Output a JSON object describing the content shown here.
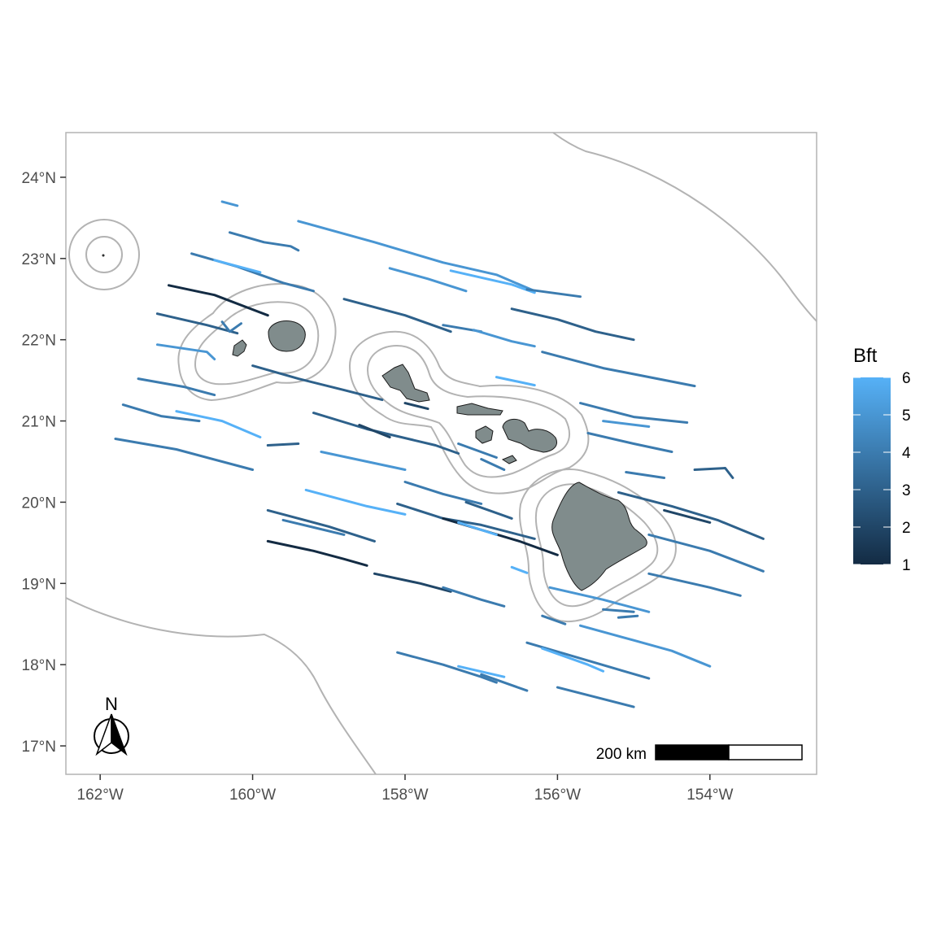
{
  "map": {
    "x_ticks": [
      "162°W",
      "160°W",
      "158°W",
      "156°W",
      "154°W"
    ],
    "y_ticks": [
      "17°N",
      "18°N",
      "19°N",
      "20°N",
      "21°N",
      "22°N",
      "23°N",
      "24°N"
    ],
    "x_tick_values": [
      -162,
      -160,
      -158,
      -156,
      -154
    ],
    "y_tick_values": [
      17,
      18,
      19,
      20,
      21,
      22,
      23,
      24
    ],
    "lon_range": [
      -162.45,
      -152.6
    ],
    "lat_range": [
      16.65,
      24.55
    ],
    "scale_bar": {
      "label": "200 km"
    },
    "north_arrow": {
      "label": "N"
    },
    "colors": {
      "land_fill": "#808c8c",
      "buffer_stroke": "#b3b3b3",
      "panel_border": "#b3b3b3",
      "low": "#132b43",
      "high": "#56b1f7"
    }
  },
  "legend": {
    "title": "Bft",
    "labels": [
      "1",
      "2",
      "3",
      "4",
      "5",
      "6"
    ],
    "values": [
      1,
      2,
      3,
      4,
      5,
      6
    ],
    "range": [
      1,
      6
    ]
  },
  "tracks": [
    {
      "bft": 5,
      "points": [
        [
          -160.4,
          23.7
        ],
        [
          -160.2,
          23.65
        ]
      ]
    },
    {
      "bft": 4,
      "points": [
        [
          -160.3,
          23.32
        ],
        [
          -159.85,
          23.2
        ],
        [
          -159.5,
          23.15
        ],
        [
          -159.4,
          23.1
        ]
      ]
    },
    {
      "bft": 5,
      "points": [
        [
          -159.4,
          23.46
        ],
        [
          -158.4,
          23.2
        ],
        [
          -157.5,
          22.95
        ],
        [
          -156.8,
          22.8
        ],
        [
          -156.3,
          22.6
        ]
      ]
    },
    {
      "bft": 6,
      "points": [
        [
          -157.4,
          22.85
        ],
        [
          -156.6,
          22.68
        ],
        [
          -156.3,
          22.58
        ]
      ]
    },
    {
      "bft": 4,
      "points": [
        [
          -160.8,
          23.06
        ],
        [
          -160.2,
          22.9
        ],
        [
          -159.6,
          22.7
        ],
        [
          -159.2,
          22.6
        ]
      ]
    },
    {
      "bft": 6,
      "points": [
        [
          -160.5,
          22.98
        ],
        [
          -159.9,
          22.83
        ]
      ]
    },
    {
      "bft": 5,
      "points": [
        [
          -158.2,
          22.88
        ],
        [
          -157.7,
          22.75
        ],
        [
          -157.2,
          22.6
        ]
      ]
    },
    {
      "bft": 4,
      "points": [
        [
          -156.4,
          22.62
        ],
        [
          -155.7,
          22.53
        ]
      ]
    },
    {
      "bft": 1,
      "points": [
        [
          -161.1,
          22.67
        ],
        [
          -160.5,
          22.55
        ],
        [
          -159.8,
          22.3
        ]
      ]
    },
    {
      "bft": 3,
      "points": [
        [
          -158.8,
          22.5
        ],
        [
          -158.0,
          22.3
        ],
        [
          -157.4,
          22.1
        ]
      ]
    },
    {
      "bft": 4,
      "points": [
        [
          -157.5,
          22.18
        ],
        [
          -157.0,
          22.1
        ]
      ]
    },
    {
      "bft": 3,
      "points": [
        [
          -156.6,
          22.38
        ],
        [
          -156.0,
          22.25
        ],
        [
          -155.5,
          22.1
        ],
        [
          -155.0,
          22.0
        ]
      ]
    },
    {
      "bft": 3,
      "points": [
        [
          -161.25,
          22.32
        ],
        [
          -160.6,
          22.18
        ],
        [
          -160.2,
          22.08
        ]
      ]
    },
    {
      "bft": 4,
      "points": [
        [
          -160.4,
          22.22
        ],
        [
          -160.3,
          22.1
        ],
        [
          -160.15,
          22.2
        ]
      ]
    },
    {
      "bft": 5,
      "points": [
        [
          -157.1,
          22.12
        ],
        [
          -156.6,
          21.98
        ],
        [
          -156.3,
          21.92
        ]
      ]
    },
    {
      "bft": 4,
      "points": [
        [
          -156.2,
          21.85
        ],
        [
          -155.4,
          21.65
        ],
        [
          -154.2,
          21.43
        ]
      ]
    },
    {
      "bft": 5,
      "points": [
        [
          -161.25,
          21.94
        ],
        [
          -160.6,
          21.85
        ],
        [
          -160.5,
          21.76
        ]
      ]
    },
    {
      "bft": 3,
      "points": [
        [
          -160.0,
          21.68
        ],
        [
          -159.4,
          21.52
        ],
        [
          -158.8,
          21.38
        ],
        [
          -158.3,
          21.26
        ]
      ]
    },
    {
      "bft": 2,
      "points": [
        [
          -158.0,
          21.22
        ],
        [
          -157.7,
          21.15
        ]
      ]
    },
    {
      "bft": 6,
      "points": [
        [
          -156.8,
          21.54
        ],
        [
          -156.3,
          21.44
        ]
      ]
    },
    {
      "bft": 4,
      "points": [
        [
          -161.5,
          21.52
        ],
        [
          -160.9,
          21.42
        ],
        [
          -160.5,
          21.32
        ]
      ]
    },
    {
      "bft": 6,
      "points": [
        [
          -161.0,
          21.12
        ],
        [
          -160.4,
          21.0
        ],
        [
          -159.9,
          20.8
        ]
      ]
    },
    {
      "bft": 4,
      "points": [
        [
          -161.7,
          21.2
        ],
        [
          -161.2,
          21.06
        ],
        [
          -160.7,
          21.0
        ]
      ]
    },
    {
      "bft": 3,
      "points": [
        [
          -159.2,
          21.1
        ],
        [
          -158.5,
          20.9
        ],
        [
          -157.6,
          20.7
        ],
        [
          -157.3,
          20.6
        ]
      ]
    },
    {
      "bft": 2,
      "points": [
        [
          -158.6,
          20.95
        ],
        [
          -158.2,
          20.8
        ]
      ]
    },
    {
      "bft": 4,
      "points": [
        [
          -157.3,
          20.72
        ],
        [
          -156.8,
          20.55
        ]
      ]
    },
    {
      "bft": 4,
      "points": [
        [
          -155.7,
          21.22
        ],
        [
          -155.0,
          21.05
        ],
        [
          -154.3,
          20.98
        ]
      ]
    },
    {
      "bft": 5,
      "points": [
        [
          -155.4,
          21.0
        ],
        [
          -154.8,
          20.93
        ]
      ]
    },
    {
      "bft": 4,
      "points": [
        [
          -155.6,
          20.85
        ],
        [
          -155.0,
          20.72
        ],
        [
          -154.5,
          20.62
        ]
      ]
    },
    {
      "bft": 4,
      "points": [
        [
          -161.8,
          20.78
        ],
        [
          -161.0,
          20.65
        ],
        [
          -160.0,
          20.4
        ]
      ]
    },
    {
      "bft": 5,
      "points": [
        [
          -159.1,
          20.62
        ],
        [
          -158.5,
          20.5
        ],
        [
          -158.0,
          20.4
        ]
      ]
    },
    {
      "bft": 3,
      "points": [
        [
          -159.8,
          20.7
        ],
        [
          -159.4,
          20.72
        ]
      ]
    },
    {
      "bft": 4,
      "points": [
        [
          -157.0,
          20.53
        ],
        [
          -156.7,
          20.4
        ]
      ]
    },
    {
      "bft": 4,
      "points": [
        [
          -155.1,
          20.37
        ],
        [
          -154.6,
          20.3
        ]
      ]
    },
    {
      "bft": 3,
      "points": [
        [
          -154.2,
          20.4
        ],
        [
          -153.8,
          20.42
        ],
        [
          -153.7,
          20.3
        ]
      ]
    },
    {
      "bft": 6,
      "points": [
        [
          -159.3,
          20.15
        ],
        [
          -158.5,
          19.95
        ],
        [
          -158.0,
          19.85
        ]
      ]
    },
    {
      "bft": 3,
      "points": [
        [
          -158.1,
          19.98
        ],
        [
          -157.5,
          19.8
        ],
        [
          -157.0,
          19.72
        ],
        [
          -156.3,
          19.55
        ]
      ]
    },
    {
      "bft": 1,
      "points": [
        [
          -157.5,
          19.8
        ],
        [
          -156.5,
          19.52
        ],
        [
          -156.0,
          19.35
        ]
      ]
    },
    {
      "bft": 4,
      "points": [
        [
          -158.0,
          20.25
        ],
        [
          -157.5,
          20.1
        ],
        [
          -157.0,
          19.98
        ]
      ]
    },
    {
      "bft": 3,
      "points": [
        [
          -157.2,
          20.0
        ],
        [
          -156.6,
          19.8
        ]
      ]
    },
    {
      "bft": 6,
      "points": [
        [
          -157.3,
          19.75
        ],
        [
          -156.8,
          19.6
        ]
      ]
    },
    {
      "bft": 3,
      "points": [
        [
          -159.8,
          19.9
        ],
        [
          -159.0,
          19.7
        ],
        [
          -158.4,
          19.52
        ]
      ]
    },
    {
      "bft": 4,
      "points": [
        [
          -159.6,
          19.78
        ],
        [
          -158.8,
          19.6
        ]
      ]
    },
    {
      "bft": 1,
      "points": [
        [
          -159.8,
          19.52
        ],
        [
          -159.2,
          19.4
        ],
        [
          -158.8,
          19.3
        ],
        [
          -158.5,
          19.22
        ]
      ]
    },
    {
      "bft": 2,
      "points": [
        [
          -158.4,
          19.12
        ],
        [
          -157.8,
          19.0
        ],
        [
          -157.4,
          18.9
        ]
      ]
    },
    {
      "bft": 4,
      "points": [
        [
          -157.5,
          18.95
        ],
        [
          -157.0,
          18.8
        ],
        [
          -156.7,
          18.72
        ]
      ]
    },
    {
      "bft": 3,
      "points": [
        [
          -155.2,
          20.12
        ],
        [
          -154.5,
          19.95
        ],
        [
          -153.9,
          19.78
        ],
        [
          -153.3,
          19.55
        ]
      ]
    },
    {
      "bft": 2,
      "points": [
        [
          -154.6,
          19.9
        ],
        [
          -154.0,
          19.75
        ]
      ]
    },
    {
      "bft": 4,
      "points": [
        [
          -154.8,
          19.6
        ],
        [
          -154.0,
          19.4
        ],
        [
          -153.3,
          19.15
        ]
      ]
    },
    {
      "bft": 4,
      "points": [
        [
          -154.8,
          19.12
        ],
        [
          -154.0,
          18.95
        ],
        [
          -153.6,
          18.85
        ]
      ]
    },
    {
      "bft": 6,
      "points": [
        [
          -156.6,
          19.2
        ],
        [
          -156.4,
          19.13
        ]
      ]
    },
    {
      "bft": 5,
      "points": [
        [
          -156.1,
          18.95
        ],
        [
          -155.4,
          18.8
        ],
        [
          -154.8,
          18.65
        ]
      ]
    },
    {
      "bft": 4,
      "points": [
        [
          -156.2,
          18.6
        ],
        [
          -155.9,
          18.5
        ]
      ]
    },
    {
      "bft": 4,
      "points": [
        [
          -155.4,
          18.68
        ],
        [
          -155.0,
          18.65
        ]
      ]
    },
    {
      "bft": 4,
      "points": [
        [
          -155.2,
          18.58
        ],
        [
          -154.95,
          18.6
        ]
      ]
    },
    {
      "bft": 4,
      "points": [
        [
          -156.4,
          18.27
        ],
        [
          -155.6,
          18.05
        ],
        [
          -154.8,
          17.83
        ]
      ]
    },
    {
      "bft": 6,
      "points": [
        [
          -156.2,
          18.2
        ],
        [
          -155.6,
          18.0
        ],
        [
          -155.4,
          17.92
        ]
      ]
    },
    {
      "bft": 5,
      "points": [
        [
          -155.7,
          18.48
        ],
        [
          -155.0,
          18.3
        ],
        [
          -154.5,
          18.17
        ],
        [
          -154.0,
          17.98
        ]
      ]
    },
    {
      "bft": 4,
      "points": [
        [
          -158.1,
          18.15
        ],
        [
          -157.5,
          18.0
        ],
        [
          -157.0,
          17.85
        ],
        [
          -156.8,
          17.78
        ]
      ]
    },
    {
      "bft": 6,
      "points": [
        [
          -157.3,
          17.98
        ],
        [
          -156.7,
          17.85
        ]
      ]
    },
    {
      "bft": 4,
      "points": [
        [
          -157.0,
          17.88
        ],
        [
          -156.4,
          17.68
        ]
      ]
    },
    {
      "bft": 4,
      "points": [
        [
          -156.0,
          17.72
        ],
        [
          -155.5,
          17.6
        ],
        [
          -155.0,
          17.48
        ]
      ]
    }
  ]
}
